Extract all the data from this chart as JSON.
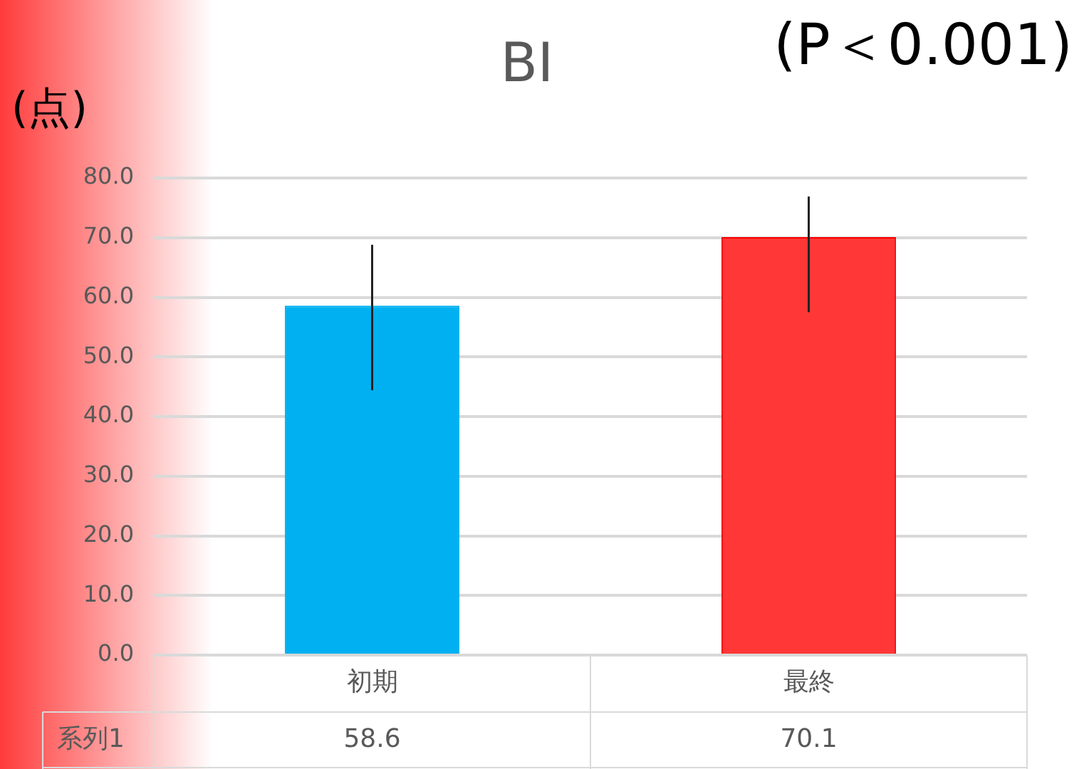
{
  "chart_data": {
    "type": "bar",
    "title": "BI",
    "ylabel": "(点)",
    "annotations": [
      "(P＜0.001)"
    ],
    "categories": [
      "初期",
      "最終"
    ],
    "series": [
      {
        "name": "系列1",
        "colors": [
          "#00b0f0",
          "#ff3737"
        ],
        "values": [
          58.6,
          70.1
        ],
        "errors": [
          [
            44.4,
            68.8
          ],
          [
            57.5,
            76.9
          ]
        ]
      }
    ],
    "ylim": [
      0,
      80
    ],
    "yticks": [
      {
        "value": 0,
        "label": "0.0"
      },
      {
        "value": 10,
        "label": "10.0"
      },
      {
        "value": 20,
        "label": "20.0"
      },
      {
        "value": 30,
        "label": "30.0"
      },
      {
        "value": 40,
        "label": "40.0"
      },
      {
        "value": 50,
        "label": "50.0"
      },
      {
        "value": 60,
        "label": "60.0"
      },
      {
        "value": 70,
        "label": "70.0"
      },
      {
        "value": 80,
        "label": "80.0"
      }
    ],
    "grid": "y",
    "data_labels": true
  }
}
